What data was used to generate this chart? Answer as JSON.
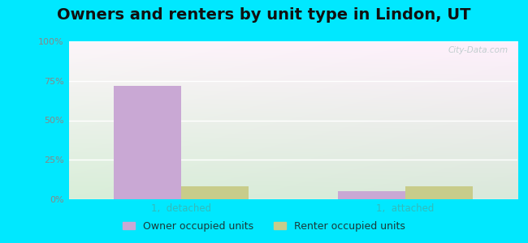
{
  "title": "Owners and renters by unit type in Lindon, UT",
  "categories": [
    "1,  detached",
    "1,  attached"
  ],
  "owner_values": [
    72,
    5
  ],
  "renter_values": [
    8,
    8
  ],
  "owner_color": "#c9a8d4",
  "renter_color": "#c8cc8a",
  "background_outer": "#00e8ff",
  "yticks": [
    0,
    25,
    50,
    75,
    100
  ],
  "ytick_labels": [
    "0%",
    "25%",
    "50%",
    "75%",
    "100%"
  ],
  "ylim": [
    0,
    100
  ],
  "bar_width": 0.3,
  "legend_labels": [
    "Owner occupied units",
    "Renter occupied units"
  ],
  "title_fontsize": 14,
  "watermark": "City-Data.com",
  "tick_color": "#33bbbb",
  "tick_fontsize": 8.5,
  "ytick_color": "#888888",
  "ytick_fontsize": 8
}
